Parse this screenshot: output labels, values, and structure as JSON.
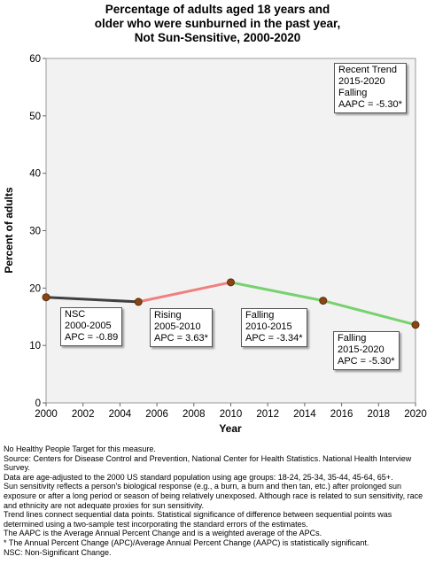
{
  "chart_data": {
    "type": "line",
    "title": [
      "Percentage of adults aged 18 years and",
      "older who were sunburned in the past year,",
      "Not Sun-Sensitive,  2000-2020"
    ],
    "xlabel": "Year",
    "ylabel": "Percent of adults",
    "xlim": [
      2000,
      2020
    ],
    "ylim": [
      0,
      60
    ],
    "xticks": [
      2000,
      2002,
      2004,
      2006,
      2008,
      2010,
      2012,
      2014,
      2016,
      2018,
      2020
    ],
    "yticks": [
      0,
      10,
      20,
      30,
      40,
      50,
      60
    ],
    "grid": false,
    "points": [
      {
        "x": 2000,
        "y": 18.4
      },
      {
        "x": 2005,
        "y": 17.6
      },
      {
        "x": 2010,
        "y": 21.0
      },
      {
        "x": 2015,
        "y": 17.8
      },
      {
        "x": 2020,
        "y": 13.6
      }
    ],
    "segments": [
      {
        "from": 2000,
        "to": 2005,
        "color": "#404040"
      },
      {
        "from": 2005,
        "to": 2010,
        "color": "#f08080"
      },
      {
        "from": 2010,
        "to": 2020,
        "color": "#77d170"
      }
    ],
    "point_color": "#8b4513",
    "annotations": [
      {
        "lines": [
          "NSC",
          "2000-2005",
          "APC = -0.89"
        ]
      },
      {
        "lines": [
          "Rising",
          "2005-2010",
          "APC =  3.63*"
        ]
      },
      {
        "lines": [
          "Falling",
          "2010-2015",
          "APC = -3.34*"
        ]
      },
      {
        "lines": [
          "Falling",
          "2015-2020",
          "APC = -5.30*"
        ]
      },
      {
        "lines": [
          "Recent Trend",
          "2015-2020",
          "Falling",
          "AAPC = -5.30*"
        ]
      }
    ]
  },
  "notes": [
    "No Healthy People Target for this measure.",
    "Source: Centers for Disease Control and Prevention, National Center for Health Statistics. National Health Interview Survey.",
    "Data are age-adjusted to the 2000 US standard population using age groups: 18-24, 25-34, 35-44, 45-64, 65+.",
    "Sun sensitivity reflects a person's biological response (e.g., a burn, a burn and then tan, etc.) after prolonged sun exposure or after a long period or season of being relatively unexposed. Although race is related to sun sensitivity, race and ethnicity are not adequate proxies for sun sensitivity.",
    "Trend lines connect sequential data points. Statistical significance of difference between sequential points was determined using a two-sample test incorporating the standard errors of the estimates.",
    "The AAPC is the Average Annual Percent Change and is a weighted average of the APCs.",
    "* The Annual Percent Change (APC)/Average Annual Percent Change (AAPC) is statistically significant.",
    "NSC: Non-Significant Change."
  ]
}
